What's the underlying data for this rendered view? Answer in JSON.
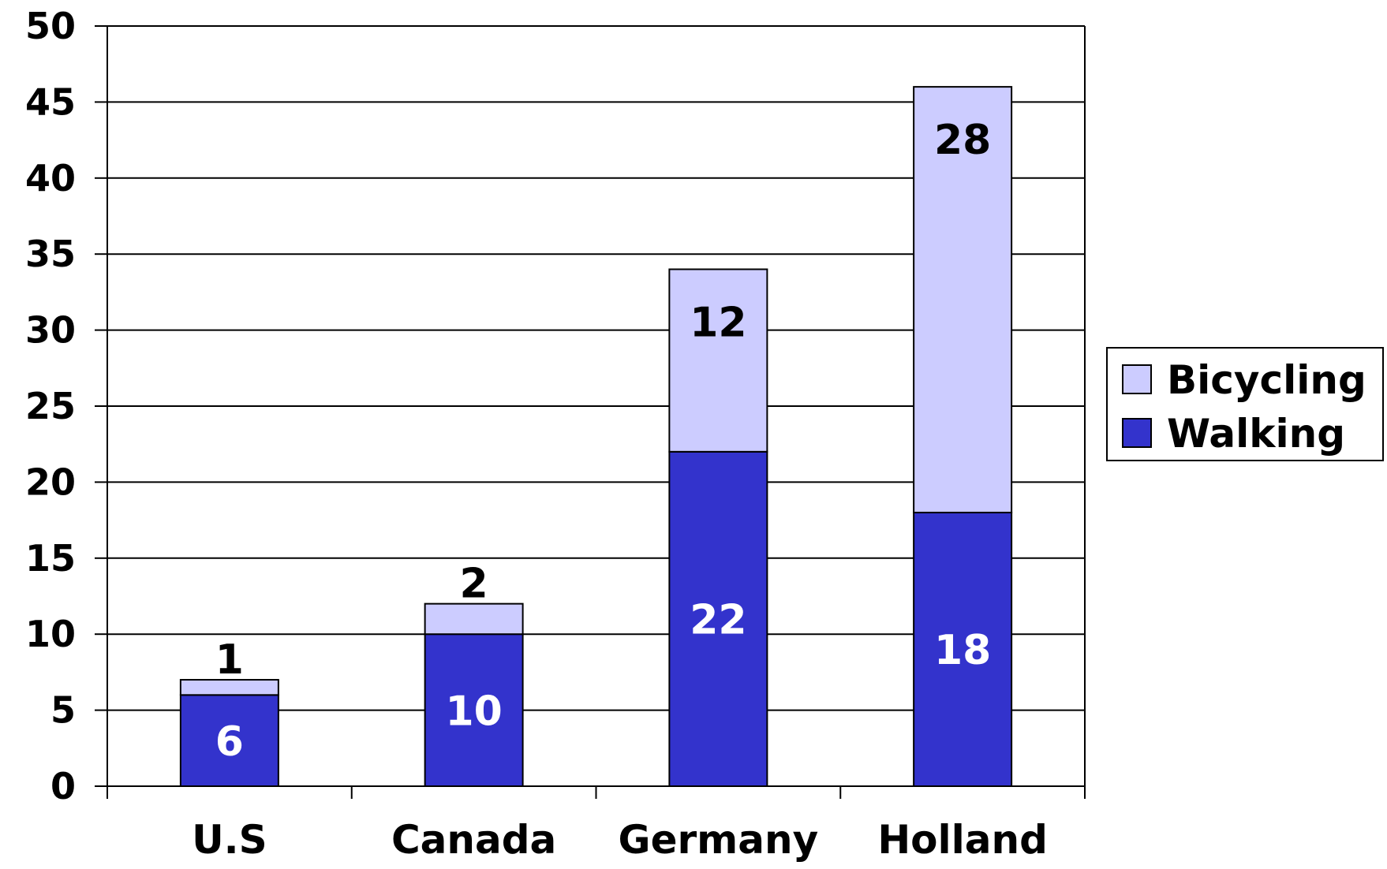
{
  "chart_data": {
    "type": "bar",
    "stacked": true,
    "categories": [
      "U.S",
      "Canada",
      "Germany",
      "Holland"
    ],
    "series": [
      {
        "name": "Walking",
        "values": [
          6,
          10,
          22,
          18
        ],
        "color": "#3333cc",
        "label_color": "#ffffff"
      },
      {
        "name": "Bicycling",
        "values": [
          1,
          2,
          12,
          28
        ],
        "color": "#ccccff",
        "label_color": "#000000"
      }
    ],
    "ylim": [
      0,
      50
    ],
    "yticks": [
      0,
      5,
      10,
      15,
      20,
      25,
      30,
      35,
      40,
      45,
      50
    ],
    "grid": true,
    "legend": {
      "position": "right",
      "order": [
        "Bicycling",
        "Walking"
      ]
    },
    "title": "",
    "xlabel": "",
    "ylabel": ""
  }
}
